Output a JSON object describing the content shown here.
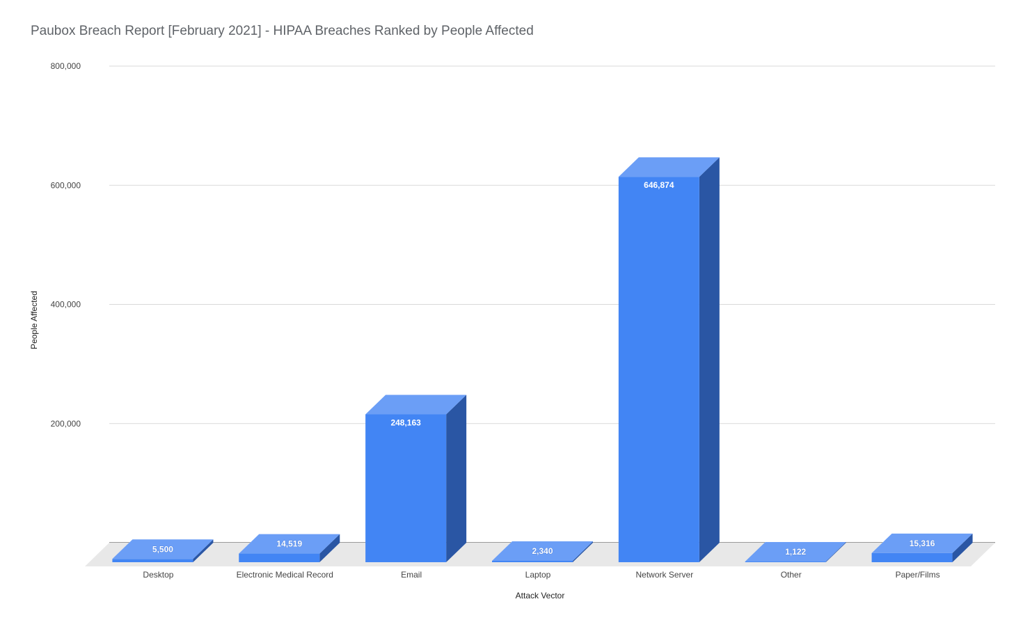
{
  "chart_data": {
    "type": "bar",
    "title": "Paubox Breach Report [February 2021] - HIPAA Breaches Ranked by People Affected",
    "xlabel": "Attack Vector",
    "ylabel": "People Affected",
    "categories": [
      "Desktop",
      "Electronic Medical Record",
      "Email",
      "Laptop",
      "Network Server",
      "Other",
      "Paper/Films"
    ],
    "values": [
      5500,
      14519,
      248163,
      2340,
      646874,
      1122,
      15316
    ],
    "data_labels": [
      "5,500",
      "14,519",
      "248,163",
      "2,340",
      "646,874",
      "1,122",
      "15,316"
    ],
    "ylim": [
      0,
      800000
    ],
    "yticks": [
      200000,
      400000,
      600000,
      800000
    ],
    "ytick_labels": [
      "200,000",
      "400,000",
      "600,000",
      "800,000"
    ],
    "grid": true,
    "style": "3d",
    "colors": {
      "front": "#4285f4",
      "top": "#6b9ef6",
      "side": "#2a56a4",
      "floor": "#e8e8e8"
    }
  }
}
